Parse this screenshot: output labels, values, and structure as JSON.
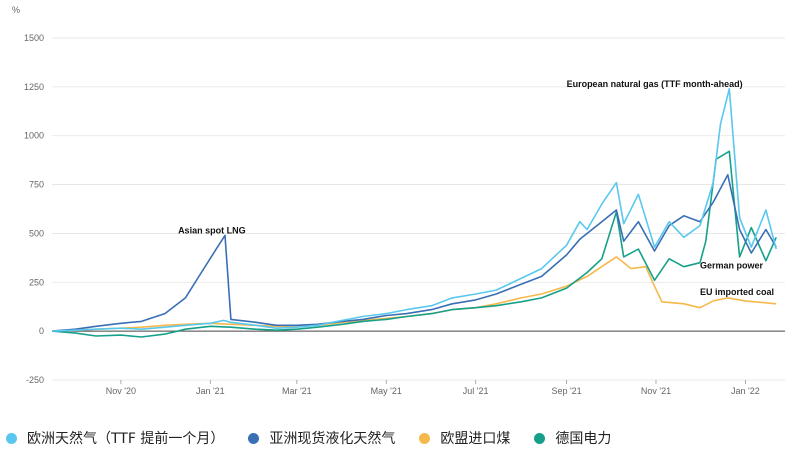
{
  "chart_data": {
    "type": "line",
    "unit_label": "%",
    "ylim": [
      -250,
      1500
    ],
    "y_ticks": [
      -250,
      0,
      250,
      500,
      750,
      1000,
      1250,
      1500
    ],
    "x_tick_labels": [
      "Nov '20",
      "Jan '21",
      "Mar '21",
      "May '21",
      "Jul '21",
      "Sep '21",
      "Nov '21",
      "Jan '22"
    ],
    "x_ticks_dates": [
      "2020-11-01",
      "2021-01-01",
      "2021-03-01",
      "2021-05-01",
      "2021-07-01",
      "2021-09-01",
      "2021-11-01",
      "2022-01-01"
    ],
    "xlim": [
      "2020-09-15",
      "2022-01-28"
    ],
    "grid": true,
    "series": [
      {
        "name": "欧洲天然气（TTF 提前一个月）",
        "color": "#5ac8ee",
        "points": [
          [
            "2020-09-15",
            0
          ],
          [
            "2020-10-01",
            5
          ],
          [
            "2020-10-15",
            10
          ],
          [
            "2020-11-01",
            15
          ],
          [
            "2020-11-15",
            10
          ],
          [
            "2020-12-01",
            20
          ],
          [
            "2020-12-15",
            30
          ],
          [
            "2021-01-01",
            40
          ],
          [
            "2021-01-10",
            55
          ],
          [
            "2021-01-15",
            45
          ],
          [
            "2021-02-01",
            30
          ],
          [
            "2021-02-15",
            15
          ],
          [
            "2021-03-01",
            20
          ],
          [
            "2021-03-15",
            30
          ],
          [
            "2021-04-01",
            55
          ],
          [
            "2021-04-15",
            75
          ],
          [
            "2021-05-01",
            90
          ],
          [
            "2021-05-15",
            110
          ],
          [
            "2021-06-01",
            130
          ],
          [
            "2021-06-15",
            170
          ],
          [
            "2021-07-01",
            190
          ],
          [
            "2021-07-15",
            210
          ],
          [
            "2021-08-01",
            270
          ],
          [
            "2021-08-15",
            320
          ],
          [
            "2021-09-01",
            440
          ],
          [
            "2021-09-10",
            560
          ],
          [
            "2021-09-15",
            520
          ],
          [
            "2021-09-25",
            650
          ],
          [
            "2021-10-05",
            760
          ],
          [
            "2021-10-10",
            550
          ],
          [
            "2021-10-20",
            700
          ],
          [
            "2021-10-31",
            430
          ],
          [
            "2021-11-10",
            560
          ],
          [
            "2021-11-20",
            480
          ],
          [
            "2021-12-01",
            540
          ],
          [
            "2021-12-10",
            760
          ],
          [
            "2021-12-15",
            1060
          ],
          [
            "2021-12-21",
            1240
          ],
          [
            "2021-12-28",
            580
          ],
          [
            "2022-01-05",
            430
          ],
          [
            "2022-01-15",
            620
          ],
          [
            "2022-01-22",
            420
          ]
        ]
      },
      {
        "name": "亚洲现货液化天然气",
        "color": "#3a6fb5",
        "points": [
          [
            "2020-09-15",
            0
          ],
          [
            "2020-10-01",
            10
          ],
          [
            "2020-10-15",
            25
          ],
          [
            "2020-11-01",
            40
          ],
          [
            "2020-11-15",
            50
          ],
          [
            "2020-12-01",
            90
          ],
          [
            "2020-12-15",
            170
          ],
          [
            "2020-12-25",
            290
          ],
          [
            "2021-01-05",
            420
          ],
          [
            "2021-01-11",
            490
          ],
          [
            "2021-01-15",
            60
          ],
          [
            "2021-02-01",
            45
          ],
          [
            "2021-02-15",
            30
          ],
          [
            "2021-03-01",
            30
          ],
          [
            "2021-03-15",
            35
          ],
          [
            "2021-04-01",
            50
          ],
          [
            "2021-04-15",
            60
          ],
          [
            "2021-05-01",
            80
          ],
          [
            "2021-05-15",
            90
          ],
          [
            "2021-06-01",
            110
          ],
          [
            "2021-06-15",
            140
          ],
          [
            "2021-07-01",
            160
          ],
          [
            "2021-07-15",
            190
          ],
          [
            "2021-08-01",
            240
          ],
          [
            "2021-08-15",
            280
          ],
          [
            "2021-09-01",
            390
          ],
          [
            "2021-09-10",
            470
          ],
          [
            "2021-09-25",
            560
          ],
          [
            "2021-10-05",
            620
          ],
          [
            "2021-10-10",
            460
          ],
          [
            "2021-10-20",
            560
          ],
          [
            "2021-10-31",
            410
          ],
          [
            "2021-11-10",
            540
          ],
          [
            "2021-11-20",
            590
          ],
          [
            "2021-12-01",
            560
          ],
          [
            "2021-12-10",
            660
          ],
          [
            "2021-12-20",
            800
          ],
          [
            "2021-12-28",
            520
          ],
          [
            "2022-01-05",
            400
          ],
          [
            "2022-01-15",
            520
          ],
          [
            "2022-01-22",
            430
          ]
        ]
      },
      {
        "name": "欧盟进口煤",
        "color": "#f5b94b",
        "points": [
          [
            "2020-09-15",
            0
          ],
          [
            "2020-10-01",
            5
          ],
          [
            "2020-10-15",
            10
          ],
          [
            "2020-11-01",
            15
          ],
          [
            "2020-11-15",
            20
          ],
          [
            "2020-12-01",
            30
          ],
          [
            "2020-12-15",
            35
          ],
          [
            "2021-01-01",
            40
          ],
          [
            "2021-01-15",
            35
          ],
          [
            "2021-02-01",
            30
          ],
          [
            "2021-02-15",
            25
          ],
          [
            "2021-03-01",
            25
          ],
          [
            "2021-03-15",
            30
          ],
          [
            "2021-04-01",
            45
          ],
          [
            "2021-04-15",
            55
          ],
          [
            "2021-05-01",
            65
          ],
          [
            "2021-05-15",
            75
          ],
          [
            "2021-06-01",
            90
          ],
          [
            "2021-06-15",
            110
          ],
          [
            "2021-07-01",
            120
          ],
          [
            "2021-07-15",
            140
          ],
          [
            "2021-08-01",
            170
          ],
          [
            "2021-08-15",
            190
          ],
          [
            "2021-09-01",
            230
          ],
          [
            "2021-09-15",
            280
          ],
          [
            "2021-10-01",
            360
          ],
          [
            "2021-10-05",
            380
          ],
          [
            "2021-10-15",
            320
          ],
          [
            "2021-10-25",
            330
          ],
          [
            "2021-10-31",
            230
          ],
          [
            "2021-11-05",
            150
          ],
          [
            "2021-11-20",
            140
          ],
          [
            "2021-12-01",
            120
          ],
          [
            "2021-12-10",
            155
          ],
          [
            "2021-12-20",
            170
          ],
          [
            "2022-01-01",
            155
          ],
          [
            "2022-01-15",
            145
          ],
          [
            "2022-01-22",
            140
          ]
        ]
      },
      {
        "name": "德国电力",
        "color": "#16a08a",
        "points": [
          [
            "2020-09-15",
            0
          ],
          [
            "2020-10-01",
            -10
          ],
          [
            "2020-10-15",
            -25
          ],
          [
            "2020-11-01",
            -20
          ],
          [
            "2020-11-15",
            -30
          ],
          [
            "2020-12-01",
            -15
          ],
          [
            "2020-12-15",
            10
          ],
          [
            "2021-01-01",
            25
          ],
          [
            "2021-01-15",
            20
          ],
          [
            "2021-02-01",
            10
          ],
          [
            "2021-02-15",
            5
          ],
          [
            "2021-03-01",
            10
          ],
          [
            "2021-03-15",
            20
          ],
          [
            "2021-04-01",
            35
          ],
          [
            "2021-04-15",
            50
          ],
          [
            "2021-05-01",
            60
          ],
          [
            "2021-05-15",
            75
          ],
          [
            "2021-06-01",
            90
          ],
          [
            "2021-06-15",
            110
          ],
          [
            "2021-07-01",
            120
          ],
          [
            "2021-07-15",
            130
          ],
          [
            "2021-08-01",
            150
          ],
          [
            "2021-08-15",
            170
          ],
          [
            "2021-09-01",
            220
          ],
          [
            "2021-09-15",
            300
          ],
          [
            "2021-09-25",
            370
          ],
          [
            "2021-10-05",
            610
          ],
          [
            "2021-10-10",
            380
          ],
          [
            "2021-10-20",
            420
          ],
          [
            "2021-10-31",
            260
          ],
          [
            "2021-11-10",
            370
          ],
          [
            "2021-11-20",
            330
          ],
          [
            "2021-12-01",
            350
          ],
          [
            "2021-12-05",
            460
          ],
          [
            "2021-12-12",
            880
          ],
          [
            "2021-12-21",
            920
          ],
          [
            "2021-12-28",
            380
          ],
          [
            "2022-01-05",
            530
          ],
          [
            "2022-01-15",
            360
          ],
          [
            "2022-01-22",
            480
          ]
        ]
      }
    ],
    "annotations": [
      {
        "text": "Asian spot LNG",
        "x": "2020-12-10",
        "y": 500
      },
      {
        "text": "European natural gas (TTF month-ahead)",
        "x": "2021-09-01",
        "y": 1250
      },
      {
        "text": "German power",
        "x": "2021-12-01",
        "y": 320
      },
      {
        "text": "EU imported coal",
        "x": "2021-12-01",
        "y": 185
      }
    ]
  },
  "legend": {
    "items": [
      {
        "label": "欧洲天然气（TTF 提前一个月）",
        "color": "#5ac8ee"
      },
      {
        "label": "亚洲现货液化天然气",
        "color": "#3a6fb5"
      },
      {
        "label": "欧盟进口煤",
        "color": "#f5b94b"
      },
      {
        "label": "德国电力",
        "color": "#16a08a"
      }
    ]
  }
}
